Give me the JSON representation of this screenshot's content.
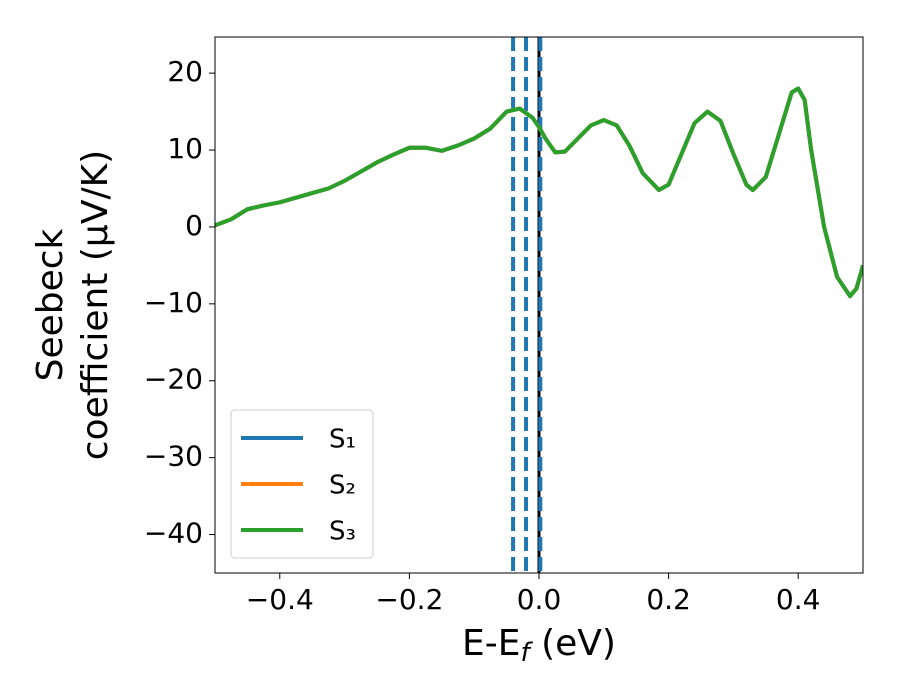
{
  "chart_data": {
    "type": "line",
    "xlabel": [
      "E-E",
      "f",
      " (eV)"
    ],
    "ylabel": [
      "Seebeck",
      "coefficient  (μV/K)"
    ],
    "x": [
      -0.5,
      -0.475,
      -0.45,
      -0.425,
      -0.4,
      -0.375,
      -0.35,
      -0.325,
      -0.3,
      -0.275,
      -0.25,
      -0.225,
      -0.2,
      -0.175,
      -0.15,
      -0.125,
      -0.1,
      -0.075,
      -0.05,
      -0.03,
      -0.01,
      0,
      0.01,
      0.025,
      0.04,
      0.06,
      0.08,
      0.1,
      0.12,
      0.14,
      0.16,
      0.185,
      0.2,
      0.22,
      0.24,
      0.26,
      0.28,
      0.3,
      0.32,
      0.33,
      0.35,
      0.37,
      0.39,
      0.4,
      0.41,
      0.42,
      0.44,
      0.46,
      0.48,
      0.49,
      0.5
    ],
    "series": [
      {
        "name": "S₁",
        "color": "#1f77b4",
        "values": [
          0.2,
          1,
          2.3,
          2.8,
          3.2,
          3.8,
          4.4,
          5,
          6,
          7.2,
          8.4,
          9.4,
          10.3,
          10.3,
          9.9,
          10.6,
          11.5,
          12.8,
          15,
          15.4,
          14.2,
          13,
          11.5,
          9.7,
          9.8,
          11.5,
          13.2,
          13.9,
          13.2,
          10.5,
          7,
          4.8,
          5.5,
          9.5,
          13.5,
          15,
          13.8,
          9.5,
          5.5,
          4.8,
          6.5,
          12,
          17.5,
          18,
          16.5,
          10,
          0,
          -6.5,
          -9,
          -8,
          -5
        ]
      },
      {
        "name": "S₂",
        "color": "#ff7f0e",
        "values": [
          0.2,
          1,
          2.3,
          2.8,
          3.2,
          3.8,
          4.4,
          5,
          6,
          7.2,
          8.4,
          9.4,
          10.3,
          10.3,
          9.9,
          10.6,
          11.5,
          12.8,
          15,
          15.4,
          14.2,
          13,
          11.5,
          9.7,
          9.8,
          11.5,
          13.2,
          13.9,
          13.2,
          10.5,
          7,
          4.8,
          5.5,
          9.5,
          13.5,
          15,
          13.8,
          9.5,
          5.5,
          4.8,
          6.5,
          12,
          17.5,
          18,
          16.5,
          10,
          0,
          -6.5,
          -9,
          -8,
          -5
        ]
      },
      {
        "name": "S₃",
        "color": "#2ca02c",
        "values": [
          0.2,
          1,
          2.3,
          2.8,
          3.2,
          3.8,
          4.4,
          5,
          6,
          7.2,
          8.4,
          9.4,
          10.3,
          10.3,
          9.9,
          10.6,
          11.5,
          12.8,
          15,
          15.4,
          14.2,
          13,
          11.5,
          9.7,
          9.8,
          11.5,
          13.2,
          13.9,
          13.2,
          10.5,
          7,
          4.8,
          5.5,
          9.5,
          13.5,
          15,
          13.8,
          9.5,
          5.5,
          4.8,
          6.5,
          12,
          17.5,
          18,
          16.5,
          10,
          0,
          -6.5,
          -9,
          -8,
          -5
        ]
      }
    ],
    "vlines": [
      {
        "x": -0.04,
        "color": "#1f77b4",
        "dashed": true
      },
      {
        "x": -0.02,
        "color": "#1f77b4",
        "dashed": true
      },
      {
        "x": 0,
        "color": "#000000",
        "dashed": false
      },
      {
        "x": 0.002,
        "color": "#1f77b4",
        "dashed": true
      }
    ],
    "xlim": [
      -0.5,
      0.5
    ],
    "ylim": [
      -45,
      24.7
    ],
    "xticks": [
      {
        "value": -0.4,
        "label": "−0.4"
      },
      {
        "value": -0.2,
        "label": "−0.2"
      },
      {
        "value": 0,
        "label": "0.0"
      },
      0.2,
      0.4
    ],
    "yticks": [
      20,
      10,
      0,
      {
        "value": -10,
        "label": "−10"
      },
      {
        "value": -20,
        "label": "−20"
      },
      {
        "value": -30,
        "label": "−30"
      },
      {
        "value": -40,
        "label": "−40"
      }
    ],
    "legend": "lower left",
    "grid": false
  }
}
